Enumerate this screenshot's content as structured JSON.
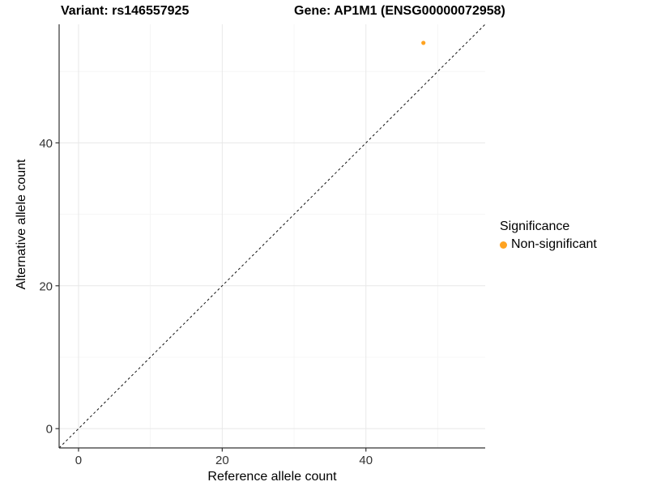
{
  "chart_data": {
    "type": "scatter",
    "title_left": "Variant: rs146557925",
    "title_right": "Gene: AP1M1 (ENSG00000072958)",
    "xlabel": "Reference allele count",
    "ylabel": "Alternative allele count",
    "x_ticks": [
      0,
      20,
      40
    ],
    "y_ticks": [
      0,
      20,
      40
    ],
    "x_minor_ticks": [
      10,
      30,
      50
    ],
    "y_minor_ticks": [
      10,
      30,
      50
    ],
    "xlim": [
      0,
      54
    ],
    "ylim": [
      0,
      54
    ],
    "xlim_expanded": [
      -2.7,
      56.6
    ],
    "ylim_expanded": [
      -2.7,
      56.6
    ],
    "grid": true,
    "identity_line": {
      "style": "dashed",
      "color": "#111111",
      "comment_visible": "y = x dashed diagonal"
    },
    "series": [
      {
        "name": "Non-significant",
        "color": "#FFA320",
        "points": [
          {
            "x": 48,
            "y": 54
          }
        ]
      }
    ],
    "legend": {
      "title": "Significance",
      "position": "right",
      "items": [
        {
          "label": "Non-significant",
          "color": "#FFA320"
        }
      ]
    },
    "colors": {
      "background": "#ffffff",
      "grid_major": "#E8E8E8",
      "grid_minor": "#F4F4F4",
      "axis_line": "#333333",
      "tick_mark": "#333333",
      "tick_text": "#333333",
      "point": "#FFA320"
    }
  }
}
